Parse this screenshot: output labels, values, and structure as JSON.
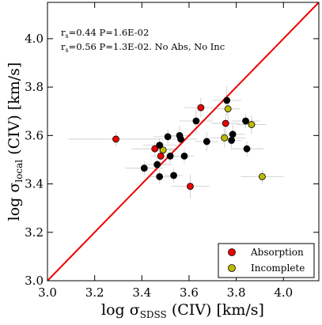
{
  "chart_data": {
    "type": "scatter",
    "x": {
      "label_main": "log σ",
      "label_sub": "SDSS",
      "label_tail": " (CIV) [km/s]",
      "lim": [
        3.0,
        4.15
      ],
      "ticks": [
        3.0,
        3.2,
        3.4,
        3.6,
        3.8,
        4.0
      ],
      "tick_labels": [
        "3.0",
        "3.2",
        "3.4",
        "3.6",
        "3.8",
        "4.0"
      ]
    },
    "y": {
      "label_main": "log σ",
      "label_sub": "local",
      "label_tail": " (CIV) [km/s]",
      "lim": [
        3.0,
        4.15
      ],
      "ticks": [
        3.0,
        3.2,
        3.4,
        3.6,
        3.8,
        4.0
      ],
      "tick_labels": [
        "3.0",
        "3.2",
        "3.4",
        "3.6",
        "3.8",
        "4.0"
      ]
    },
    "annotations": [
      {
        "main": "r",
        "sub": "s",
        "rest": "=0.44 P=1.6E-02"
      },
      {
        "main": "r",
        "sub": "s",
        "rest": "=0.56 P=1.3E-02. No Abs, No Inc"
      }
    ],
    "reference_line": {
      "from": [
        3.0,
        3.0
      ],
      "to": [
        4.15,
        4.15
      ],
      "color": "#ee0000"
    },
    "legend": {
      "position": "lower-right",
      "entries": [
        {
          "label": "Absorption",
          "color": "#ee0000"
        },
        {
          "label": "Incomplete",
          "color": "#bbbb00"
        }
      ]
    },
    "series": [
      {
        "name": "Absorption",
        "color": "#ee0000",
        "points": [
          {
            "x": 3.29,
            "y": 3.585,
            "xerr": 0.2,
            "yerr": 0.03
          },
          {
            "x": 3.455,
            "y": 3.545,
            "xerr": 0.1,
            "yerr": 0.03
          },
          {
            "x": 3.48,
            "y": 3.515,
            "xerr": 0.04,
            "yerr": 0.03
          },
          {
            "x": 3.605,
            "y": 3.39,
            "xerr": 0.08,
            "yerr": 0.05
          },
          {
            "x": 3.65,
            "y": 3.715,
            "xerr": 0.07,
            "yerr": 0.04
          },
          {
            "x": 3.755,
            "y": 3.65,
            "xerr": 0.06,
            "yerr": 0.04
          }
        ]
      },
      {
        "name": "Incomplete",
        "color": "#bbbb00",
        "points": [
          {
            "x": 3.49,
            "y": 3.54,
            "xerr": 0.05,
            "yerr": 0.03
          },
          {
            "x": 3.75,
            "y": 3.59,
            "xerr": 0.09,
            "yerr": 0.04
          },
          {
            "x": 3.765,
            "y": 3.71,
            "xerr": 0.05,
            "yerr": 0.06
          },
          {
            "x": 3.865,
            "y": 3.645,
            "xerr": 0.06,
            "yerr": 0.04
          },
          {
            "x": 3.91,
            "y": 3.43,
            "xerr": 0.09,
            "yerr": 0.03
          }
        ]
      },
      {
        "name": "",
        "color": "#000000",
        "points": [
          {
            "x": 3.41,
            "y": 3.465,
            "xerr": 0.08,
            "yerr": 0.03
          },
          {
            "x": 3.465,
            "y": 3.48,
            "xerr": 0.06,
            "yerr": 0.03
          },
          {
            "x": 3.475,
            "y": 3.56,
            "xerr": 0.07,
            "yerr": 0.03
          },
          {
            "x": 3.475,
            "y": 3.43,
            "xerr": 0.05,
            "yerr": 0.03
          },
          {
            "x": 3.51,
            "y": 3.595,
            "xerr": 0.06,
            "yerr": 0.03
          },
          {
            "x": 3.52,
            "y": 3.515,
            "xerr": 0.05,
            "yerr": 0.03
          },
          {
            "x": 3.535,
            "y": 3.435,
            "xerr": 0.04,
            "yerr": 0.03
          },
          {
            "x": 3.56,
            "y": 3.6,
            "xerr": 0.05,
            "yerr": 0.04
          },
          {
            "x": 3.565,
            "y": 3.585,
            "xerr": 0.07,
            "yerr": 0.03
          },
          {
            "x": 3.58,
            "y": 3.515,
            "xerr": 0.04,
            "yerr": 0.03
          },
          {
            "x": 3.63,
            "y": 3.66,
            "xerr": 0.07,
            "yerr": 0.05
          },
          {
            "x": 3.675,
            "y": 3.575,
            "xerr": 0.05,
            "yerr": 0.04
          },
          {
            "x": 3.76,
            "y": 3.745,
            "xerr": 0.06,
            "yerr": 0.06
          },
          {
            "x": 3.78,
            "y": 3.58,
            "xerr": 0.04,
            "yerr": 0.03
          },
          {
            "x": 3.785,
            "y": 3.605,
            "xerr": 0.05,
            "yerr": 0.04
          },
          {
            "x": 3.84,
            "y": 3.66,
            "xerr": 0.06,
            "yerr": 0.03
          },
          {
            "x": 3.845,
            "y": 3.545,
            "xerr": 0.07,
            "yerr": 0.03
          }
        ]
      }
    ]
  }
}
